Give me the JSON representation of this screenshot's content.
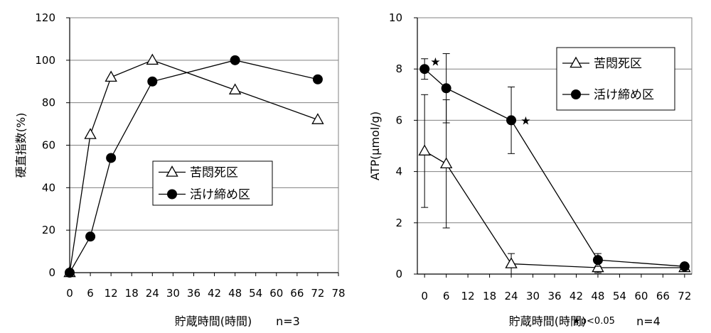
{
  "chart_data": [
    {
      "type": "line",
      "xlabel": "貯蔵時間(時間)",
      "ylabel": "硬直指数(%)",
      "note": "n=3",
      "xlim": [
        0,
        78
      ],
      "ylim": [
        0,
        120
      ],
      "xticks": [
        0,
        6,
        12,
        18,
        24,
        30,
        36,
        42,
        48,
        54,
        60,
        66,
        72,
        78
      ],
      "yticks": [
        0,
        20,
        40,
        60,
        80,
        100,
        120
      ],
      "grid": "horizontal",
      "legend_position": "center",
      "series": [
        {
          "name": "苦悶死区",
          "marker": "triangle-open",
          "x": [
            0,
            6,
            12,
            24,
            48,
            72
          ],
          "y": [
            0,
            65,
            92,
            100,
            86,
            72
          ]
        },
        {
          "name": "活け締め区",
          "marker": "circle-filled",
          "x": [
            0,
            6,
            12,
            24,
            48,
            72
          ],
          "y": [
            0,
            17,
            54,
            90,
            100,
            91
          ]
        }
      ]
    },
    {
      "type": "line",
      "xlabel": "貯蔵時間(時間)",
      "ylabel": "ATP(μmol/g)",
      "note": "n=4",
      "significance": "★p<0.05",
      "xlim": [
        -2,
        74
      ],
      "ylim": [
        0,
        10
      ],
      "xticks": [
        0,
        6,
        12,
        18,
        24,
        30,
        36,
        42,
        48,
        54,
        60,
        66,
        72
      ],
      "yticks": [
        0,
        2,
        4,
        6,
        8,
        10
      ],
      "grid": "horizontal",
      "legend_position": "top-right",
      "series": [
        {
          "name": "苦悶死区",
          "marker": "triangle-open",
          "x": [
            0,
            6,
            24,
            48,
            72
          ],
          "y": [
            4.8,
            4.3,
            0.4,
            0.25,
            0.25
          ],
          "err": [
            2.2,
            2.5,
            0.4,
            0.2,
            0.1
          ]
        },
        {
          "name": "活け締め区",
          "marker": "circle-filled",
          "x": [
            0,
            6,
            24,
            48,
            72
          ],
          "y": [
            8.0,
            7.25,
            6.0,
            0.55,
            0.3
          ],
          "err": [
            0.4,
            1.35,
            1.3,
            0.25,
            0.1
          ]
        }
      ],
      "stars": [
        {
          "x": 3,
          "y": 8.3,
          "label": "★"
        },
        {
          "x": 28,
          "y": 6.0,
          "label": "★"
        }
      ]
    }
  ]
}
